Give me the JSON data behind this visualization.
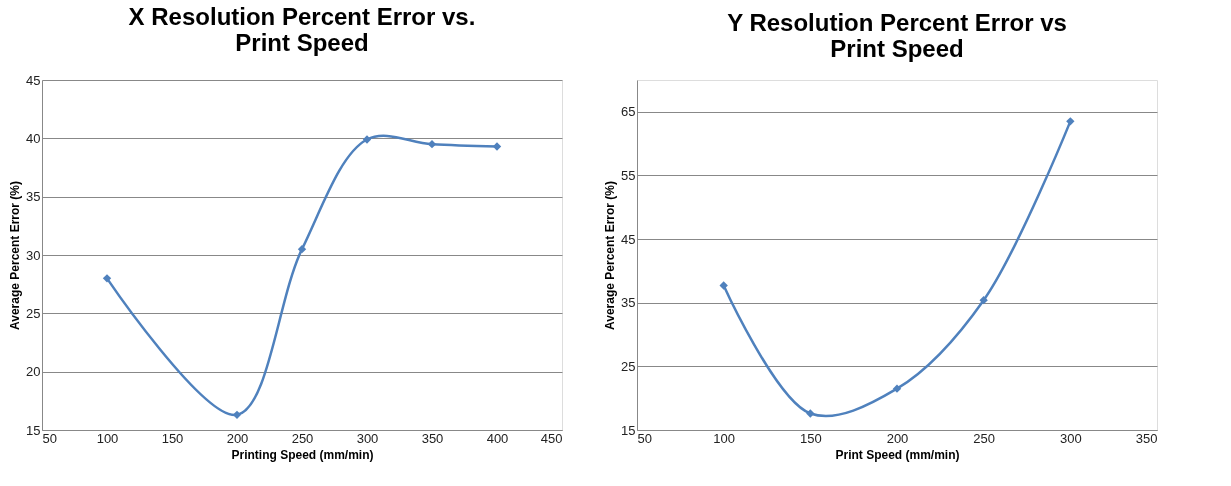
{
  "chart_data": [
    {
      "type": "line",
      "title": "X Resolution Percent Error vs.\nPrint Speed",
      "xlabel": "Printing Speed (mm/min)",
      "ylabel": "Average Percent Error (%)",
      "x": [
        100,
        200,
        250,
        300,
        350,
        400
      ],
      "series": [
        {
          "color": "#4f81bd",
          "values": [
            28,
            16.3,
            30.5,
            39.9,
            39.5,
            39.3
          ]
        }
      ],
      "xlim": [
        50,
        450
      ],
      "xticks": [
        50,
        100,
        150,
        200,
        250,
        300,
        350,
        400,
        450
      ],
      "ylim": [
        15,
        45
      ],
      "yticks": [
        15,
        20,
        25,
        30,
        35,
        40,
        45
      ],
      "grid": "y",
      "marker": "diamond",
      "line_style": "solid"
    },
    {
      "type": "line",
      "title": "Y Resolution Percent Error vs\nPrint Speed",
      "xlabel": "Print Speed (mm/min)",
      "ylabel": "Average Percent Error (%)",
      "x": [
        100,
        150,
        200,
        250,
        300
      ],
      "series": [
        {
          "color": "#4f81bd",
          "values": [
            37.7,
            17.6,
            21.5,
            35.4,
            63.5
          ]
        }
      ],
      "xlim": [
        50,
        350
      ],
      "xticks": [
        50,
        100,
        150,
        200,
        250,
        300,
        350
      ],
      "ylim": [
        15,
        70
      ],
      "yticks": [
        15,
        25,
        35,
        45,
        55,
        65
      ],
      "grid": "y",
      "marker": "diamond",
      "line_style": "solid"
    }
  ]
}
